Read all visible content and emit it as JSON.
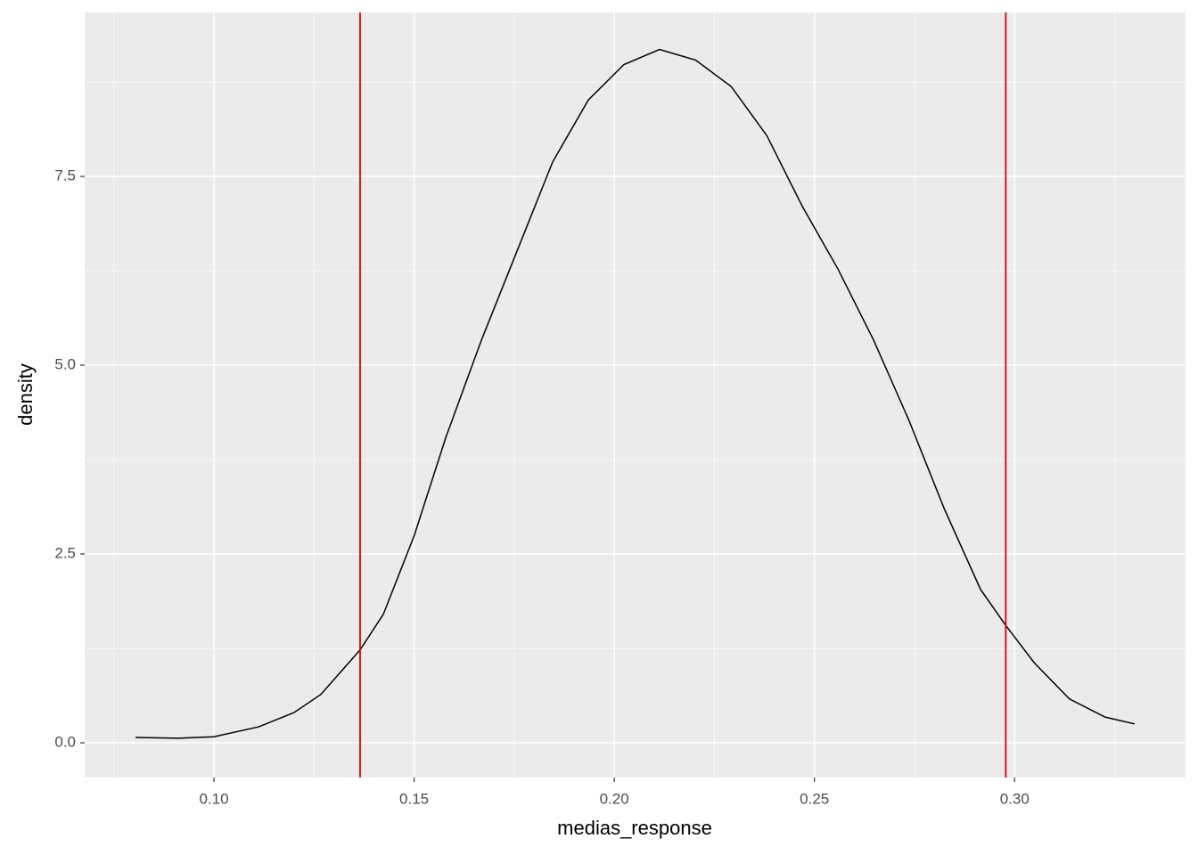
{
  "chart_data": {
    "type": "line",
    "x_label": "medias_response",
    "y_label": "density",
    "x": [
      0.0804,
      0.0911,
      0.1,
      0.1111,
      0.12,
      0.1267,
      0.1365,
      0.1423,
      0.15,
      0.1579,
      0.1668,
      0.1757,
      0.1846,
      0.1935,
      0.2024,
      0.2113,
      0.2203,
      0.2292,
      0.2381,
      0.247,
      0.2559,
      0.2648,
      0.2736,
      0.2825,
      0.2915,
      0.2977,
      0.3049,
      0.3137,
      0.3226,
      0.33
    ],
    "series": [
      {
        "color": "#000000",
        "values": [
          0.07,
          0.06,
          0.08,
          0.21,
          0.4,
          0.64,
          1.23,
          1.7,
          2.74,
          4.04,
          5.33,
          6.51,
          7.69,
          8.51,
          8.98,
          9.18,
          9.04,
          8.69,
          8.04,
          7.1,
          6.27,
          5.33,
          4.27,
          3.09,
          2.03,
          1.56,
          1.06,
          0.58,
          0.34,
          0.25
        ]
      }
    ],
    "reference_lines": {
      "x": [
        0.1365,
        0.2978
      ],
      "color": "#e00000"
    },
    "xlim": [
      0.0677,
      0.3427
    ],
    "ylim": [
      -0.46,
      9.67
    ],
    "xticks": [
      {
        "value": 0.1,
        "label": "0.10"
      },
      0.15,
      {
        "value": 0.2,
        "label": "0.20"
      },
      0.25,
      {
        "value": 0.3,
        "label": "0.30"
      }
    ],
    "yticks": [
      {
        "value": 0,
        "label": "0.0"
      },
      2.5,
      {
        "value": 5,
        "label": "5.0"
      },
      7.5
    ],
    "grid": true,
    "panel_color": "#ebebeb"
  }
}
